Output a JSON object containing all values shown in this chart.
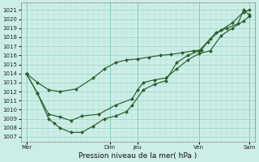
{
  "title": "Pression niveau de la mer( hPa )",
  "bg_color": "#cdeee8",
  "line_color": "#2a5e2a",
  "grid_major_color": "#88ccbb",
  "grid_minor_color": "#aaddcc",
  "ylim": [
    1006.5,
    1021.8
  ],
  "yticks": [
    1007,
    1008,
    1009,
    1010,
    1011,
    1012,
    1013,
    1014,
    1015,
    1016,
    1017,
    1018,
    1019,
    1020,
    1021
  ],
  "xlim": [
    0,
    21
  ],
  "xtick_positions": [
    0.5,
    8.0,
    10.5,
    16.0,
    20.5
  ],
  "xtick_labels": [
    "Mer",
    "Dim",
    "Jeu",
    "Ven",
    "Sam"
  ],
  "vline_x": [
    0.5,
    8.0,
    10.5,
    16.0,
    20.5
  ],
  "line_upper_x": [
    0.5,
    1.5,
    2.5,
    3.5,
    5.0,
    6.5,
    7.5,
    8.5,
    9.5,
    10.5,
    11.5,
    12.5,
    13.5,
    14.5,
    15.5,
    16.2,
    16.8,
    17.5,
    18.5,
    19.5,
    20.0,
    20.5
  ],
  "line_upper_y": [
    1014.0,
    1013.0,
    1012.2,
    1012.0,
    1012.3,
    1013.5,
    1014.5,
    1015.2,
    1015.5,
    1015.6,
    1015.8,
    1016.0,
    1016.1,
    1016.3,
    1016.5,
    1016.6,
    1017.5,
    1018.5,
    1019.0,
    1019.5,
    1021.0,
    1020.5
  ],
  "line_mid_x": [
    0.5,
    1.5,
    2.5,
    3.5,
    4.5,
    5.5,
    7.0,
    8.5,
    10.0,
    10.5,
    11.0,
    12.0,
    13.0,
    14.0,
    15.0,
    16.0,
    17.0,
    18.0,
    19.0,
    20.0,
    20.5
  ],
  "line_mid_y": [
    1014.0,
    1011.8,
    1009.5,
    1009.2,
    1008.8,
    1009.3,
    1009.5,
    1010.5,
    1011.2,
    1012.2,
    1013.0,
    1013.3,
    1013.5,
    1014.5,
    1015.5,
    1016.2,
    1016.5,
    1018.2,
    1019.0,
    1019.8,
    1020.3
  ],
  "line_lower_x": [
    0.5,
    1.5,
    2.5,
    3.0,
    3.5,
    4.5,
    5.5,
    6.5,
    7.5,
    8.5,
    9.5,
    10.0,
    11.0,
    12.0,
    13.0,
    14.0,
    15.0,
    16.0,
    17.0,
    18.0,
    19.0,
    20.0,
    20.5
  ],
  "line_lower_y": [
    1014.0,
    1011.8,
    1009.0,
    1008.5,
    1008.0,
    1007.5,
    1007.5,
    1008.2,
    1009.0,
    1009.3,
    1009.8,
    1010.5,
    1012.2,
    1012.8,
    1013.2,
    1015.2,
    1016.0,
    1016.5,
    1017.8,
    1018.8,
    1019.6,
    1020.8,
    1021.0
  ],
  "markersize": 2.2,
  "linewidth": 0.85,
  "ylabel_fontsize": 5,
  "xlabel_fontsize": 6.5,
  "tick_labelsize": 5
}
